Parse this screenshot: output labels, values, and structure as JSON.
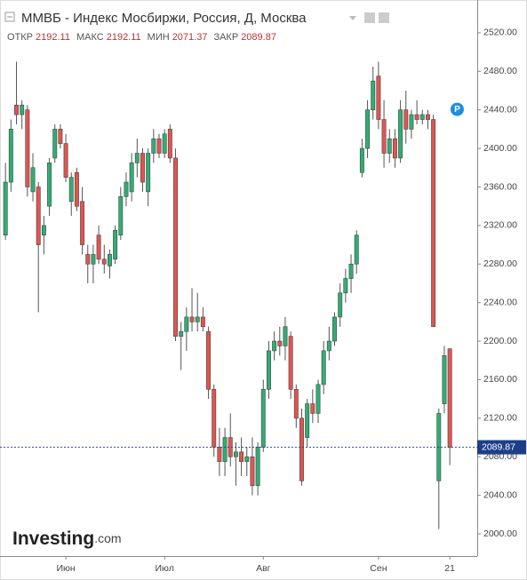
{
  "chart_data": {
    "type": "candlestick",
    "title": "ММВБ - Индекс Мосбиржи, Россия, Д, Москва",
    "header_labels": [
      "ОТКР",
      "МАКС",
      "МИН",
      "ЗАКР"
    ],
    "up_color": "#2fae74",
    "down_color": "#e05550",
    "open": [
      2310,
      2365,
      2445,
      2435,
      2440,
      2355,
      2360,
      2310,
      2340,
      2390,
      2420,
      2405,
      2345,
      2375,
      2345,
      2290,
      2280,
      2310,
      2285,
      2278,
      2285,
      2310,
      2350,
      2355,
      2385,
      2395,
      2355,
      2395,
      2410,
      2395,
      2420,
      2390,
      2205,
      2210,
      2225,
      2220,
      2225,
      2210,
      2150,
      2090,
      2075,
      2100,
      2080,
      2085,
      2075,
      2080,
      2050,
      2090,
      2150,
      2190,
      2200,
      2195,
      2205,
      2150,
      2120,
      2100,
      2135,
      2125,
      2155,
      2190,
      2200,
      2225,
      2250,
      2265,
      2280,
      2375,
      2400,
      2440,
      2475,
      2430,
      2395,
      2410,
      2390,
      2440,
      2420,
      2435,
      2430,
      2435,
      2430,
      2055,
      2135,
      2192.11
    ],
    "high": [
      2385,
      2430,
      2490,
      2450,
      2445,
      2395,
      2365,
      2330,
      2390,
      2425,
      2425,
      2415,
      2375,
      2380,
      2360,
      2300,
      2300,
      2320,
      2300,
      2295,
      2320,
      2360,
      2375,
      2395,
      2410,
      2400,
      2400,
      2420,
      2415,
      2420,
      2425,
      2400,
      2220,
      2235,
      2255,
      2250,
      2235,
      2215,
      2155,
      2110,
      2110,
      2125,
      2095,
      2100,
      2090,
      2100,
      2095,
      2160,
      2200,
      2210,
      2215,
      2225,
      2210,
      2155,
      2130,
      2140,
      2150,
      2160,
      2200,
      2215,
      2230,
      2260,
      2275,
      2290,
      2315,
      2410,
      2450,
      2485,
      2490,
      2450,
      2420,
      2420,
      2450,
      2460,
      2440,
      2450,
      2440,
      2440,
      2435,
      2130,
      2195,
      2192.11
    ],
    "low": [
      2305,
      2355,
      2425,
      2420,
      2350,
      2345,
      2230,
      2290,
      2330,
      2385,
      2400,
      2365,
      2330,
      2335,
      2290,
      2260,
      2260,
      2280,
      2270,
      2265,
      2280,
      2305,
      2340,
      2345,
      2370,
      2355,
      2340,
      2385,
      2390,
      2390,
      2385,
      2200,
      2170,
      2190,
      2210,
      2210,
      2210,
      2140,
      2080,
      2060,
      2060,
      2070,
      2050,
      2060,
      2060,
      2040,
      2040,
      2085,
      2140,
      2180,
      2185,
      2180,
      2140,
      2110,
      2050,
      2090,
      2115,
      2115,
      2145,
      2180,
      2195,
      2215,
      2240,
      2250,
      2270,
      2370,
      2390,
      2430,
      2420,
      2380,
      2385,
      2380,
      2385,
      2405,
      2410,
      2425,
      2425,
      2420,
      2215,
      2005,
      2125,
      2071.37
    ],
    "close": [
      2365,
      2420,
      2435,
      2445,
      2360,
      2380,
      2300,
      2320,
      2385,
      2420,
      2405,
      2370,
      2370,
      2340,
      2300,
      2280,
      2290,
      2285,
      2280,
      2290,
      2315,
      2350,
      2365,
      2385,
      2395,
      2365,
      2395,
      2410,
      2395,
      2415,
      2390,
      2205,
      2210,
      2225,
      2220,
      2225,
      2215,
      2150,
      2090,
      2075,
      2100,
      2080,
      2085,
      2075,
      2080,
      2050,
      2090,
      2150,
      2190,
      2200,
      2195,
      2215,
      2150,
      2120,
      2055,
      2135,
      2125,
      2155,
      2190,
      2200,
      2225,
      2250,
      2265,
      2280,
      2310,
      2400,
      2440,
      2470,
      2430,
      2395,
      2410,
      2390,
      2440,
      2420,
      2435,
      2430,
      2435,
      2430,
      2215,
      2125,
      2185,
      2089.87
    ],
    "xlim": [
      -1,
      86
    ],
    "xticks": [
      {
        "value": 11,
        "label": "Июн"
      },
      {
        "value": 29,
        "label": "Июл"
      },
      {
        "value": 47,
        "label": "Авг"
      },
      {
        "value": 68,
        "label": "Сен"
      },
      {
        "value": 81,
        "label": "21"
      }
    ],
    "ylim": [
      1977,
      2554
    ],
    "yticks": [
      {
        "value": 2000,
        "label": "2000.00"
      },
      {
        "value": 2040,
        "label": "2040.00"
      },
      {
        "value": 2080,
        "label": "2080.00"
      },
      {
        "value": 2120,
        "label": "2120.00"
      },
      {
        "value": 2160,
        "label": "2160.00"
      },
      {
        "value": 2200,
        "label": "2200.00"
      },
      {
        "value": 2240,
        "label": "2240.00"
      },
      {
        "value": 2280,
        "label": "2280.00"
      },
      {
        "value": 2320,
        "label": "2320.00"
      },
      {
        "value": 2360,
        "label": "2360.00"
      },
      {
        "value": 2400,
        "label": "2400.00"
      },
      {
        "value": 2440,
        "label": "2440.00"
      },
      {
        "value": 2480,
        "label": "2480.00"
      },
      {
        "value": 2520,
        "label": "2520.00"
      }
    ],
    "marker": "P",
    "logo": "Investing",
    "logo_suffix": ".com"
  }
}
